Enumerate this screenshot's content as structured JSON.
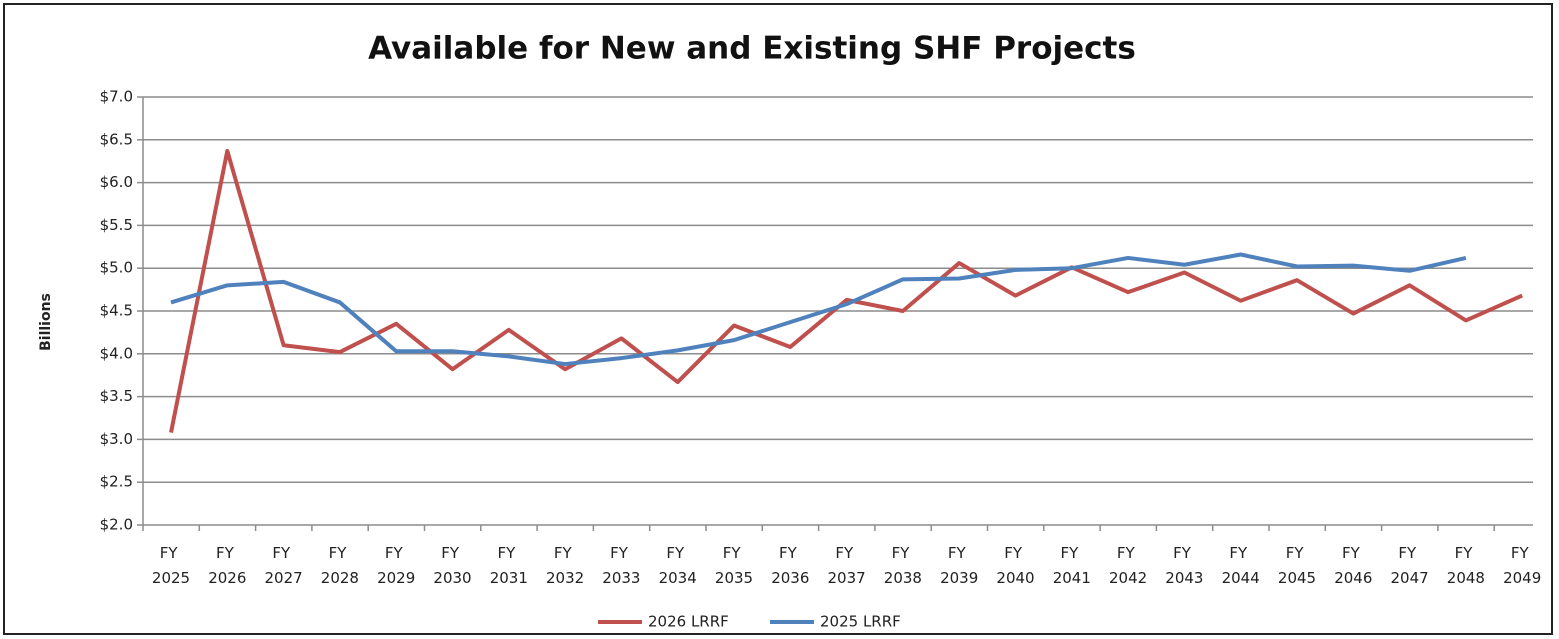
{
  "chart_data": {
    "type": "line",
    "title": "Available for New and Existing SHF Projects",
    "y_label": "Billions",
    "categories": [
      "FY 2025",
      "FY 2026",
      "FY 2027",
      "FY 2028",
      "FY 2029",
      "FY 2030",
      "FY 2031",
      "FY 2032",
      "FY 2033",
      "FY 2034",
      "FY 2035",
      "FY 2036",
      "FY 2037",
      "FY 2038",
      "FY 2039",
      "FY 2040",
      "FY 2041",
      "FY 2042",
      "FY 2043",
      "FY 2044",
      "FY 2045",
      "FY 2046",
      "FY 2047",
      "FY 2048",
      "FY 2049"
    ],
    "series": [
      {
        "name": "2026 LRRF",
        "color": "#c0504d",
        "values": [
          3.08,
          6.37,
          4.1,
          4.02,
          4.35,
          3.82,
          4.28,
          3.82,
          4.18,
          3.67,
          4.33,
          4.08,
          4.63,
          4.5,
          5.06,
          4.68,
          5.01,
          4.72,
          4.95,
          4.62,
          4.86,
          4.47,
          4.8,
          4.39,
          4.68
        ]
      },
      {
        "name": "2025 LRRF",
        "color": "#4f81bd",
        "values": [
          4.6,
          4.8,
          4.84,
          4.6,
          4.03,
          4.03,
          3.97,
          3.88,
          3.95,
          4.04,
          4.16,
          4.37,
          4.58,
          4.87,
          4.88,
          4.98,
          5.0,
          5.12,
          5.04,
          5.16,
          5.02,
          5.03,
          4.97,
          5.12,
          null
        ]
      }
    ],
    "ylim": [
      2,
      7
    ],
    "yticks": [
      {
        "value": 2,
        "label": "$2.0"
      },
      {
        "value": 2.5,
        "label": "$2.5"
      },
      {
        "value": 3,
        "label": "$3.0"
      },
      {
        "value": 3.5,
        "label": "$3.5"
      },
      {
        "value": 4,
        "label": "$4.0"
      },
      {
        "value": 4.5,
        "label": "$4.5"
      },
      {
        "value": 5,
        "label": "$5.0"
      },
      {
        "value": 5.5,
        "label": "$5.5"
      },
      {
        "value": 6,
        "label": "$6.0"
      },
      {
        "value": 6.5,
        "label": "$6.5"
      },
      {
        "value": 7,
        "label": "$7.0"
      }
    ],
    "grid": true,
    "legend": "bottom"
  }
}
